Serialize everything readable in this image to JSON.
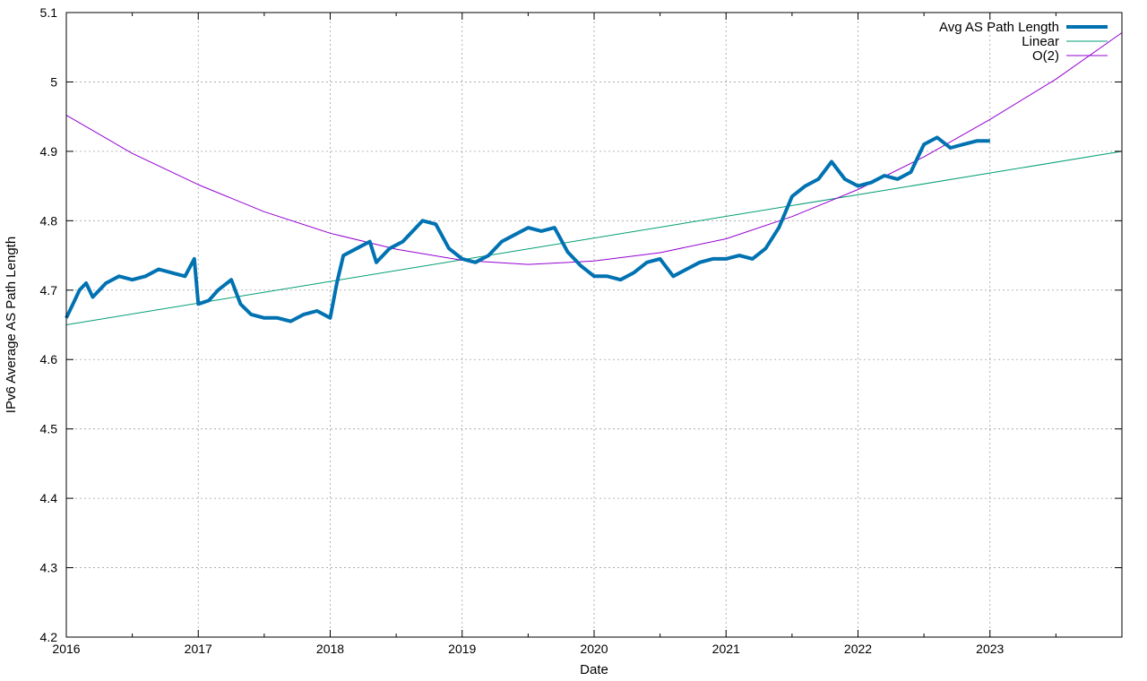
{
  "chart_data": {
    "type": "line",
    "title": "",
    "xlabel": "Date",
    "ylabel": "IPv6 Average AS Path Length",
    "xlim": [
      2016,
      2024
    ],
    "ylim": [
      4.2,
      5.1
    ],
    "x_ticks": [
      "2016",
      "2017",
      "2018",
      "2019",
      "2020",
      "2021",
      "2022",
      "2023"
    ],
    "y_ticks": [
      "4.2",
      "4.3",
      "4.4",
      "4.5",
      "4.6",
      "4.7",
      "4.8",
      "4.9",
      "5",
      "5.1"
    ],
    "grid": true,
    "legend": "top-right",
    "series": [
      {
        "name": "Avg AS Path Length",
        "color": "#0072b2",
        "style": "thick-line",
        "x": [
          2016.0,
          2016.05,
          2016.1,
          2016.15,
          2016.2,
          2016.3,
          2016.4,
          2016.5,
          2016.6,
          2016.7,
          2016.8,
          2016.9,
          2016.97,
          2017.0,
          2017.08,
          2017.15,
          2017.25,
          2017.32,
          2017.4,
          2017.5,
          2017.6,
          2017.7,
          2017.8,
          2017.9,
          2018.0,
          2018.05,
          2018.1,
          2018.2,
          2018.3,
          2018.35,
          2018.45,
          2018.55,
          2018.65,
          2018.7,
          2018.8,
          2018.9,
          2019.0,
          2019.1,
          2019.2,
          2019.3,
          2019.4,
          2019.5,
          2019.6,
          2019.7,
          2019.8,
          2019.9,
          2020.0,
          2020.1,
          2020.2,
          2020.3,
          2020.4,
          2020.5,
          2020.6,
          2020.7,
          2020.8,
          2020.9,
          2021.0,
          2021.1,
          2021.2,
          2021.3,
          2021.4,
          2021.5,
          2021.6,
          2021.7,
          2021.8,
          2021.9,
          2022.0,
          2022.1,
          2022.2,
          2022.3,
          2022.4,
          2022.5,
          2022.6,
          2022.7,
          2022.8,
          2022.9,
          2023.0
        ],
        "y": [
          4.66,
          4.68,
          4.7,
          4.71,
          4.69,
          4.71,
          4.72,
          4.715,
          4.72,
          4.73,
          4.725,
          4.72,
          4.745,
          4.68,
          4.685,
          4.7,
          4.715,
          4.68,
          4.665,
          4.66,
          4.66,
          4.655,
          4.665,
          4.67,
          4.66,
          4.71,
          4.75,
          4.76,
          4.77,
          4.74,
          4.76,
          4.77,
          4.79,
          4.8,
          4.795,
          4.76,
          4.745,
          4.74,
          4.75,
          4.77,
          4.78,
          4.79,
          4.785,
          4.79,
          4.755,
          4.735,
          4.72,
          4.72,
          4.715,
          4.725,
          4.74,
          4.745,
          4.72,
          4.73,
          4.74,
          4.745,
          4.745,
          4.75,
          4.745,
          4.76,
          4.79,
          4.835,
          4.85,
          4.86,
          4.885,
          4.86,
          4.85,
          4.855,
          4.865,
          4.86,
          4.87,
          4.91,
          4.92,
          4.905,
          4.91,
          4.915,
          4.915
        ]
      },
      {
        "name": "Linear",
        "color": "#009e73",
        "style": "thin-line",
        "x": [
          2016.0,
          2024.0
        ],
        "y": [
          4.65,
          4.9
        ]
      },
      {
        "name": "O(2)",
        "color": "#9400d3",
        "style": "thin-line",
        "x": [
          2016.0,
          2016.5,
          2017.0,
          2017.5,
          2018.0,
          2018.5,
          2019.0,
          2019.5,
          2020.0,
          2020.5,
          2021.0,
          2021.5,
          2022.0,
          2022.5,
          2023.0,
          2023.5,
          2024.0
        ],
        "y": [
          4.952,
          4.897,
          4.852,
          4.813,
          4.782,
          4.759,
          4.743,
          4.737,
          4.742,
          4.754,
          4.774,
          4.806,
          4.845,
          4.892,
          4.946,
          5.004,
          5.071
        ]
      }
    ]
  }
}
